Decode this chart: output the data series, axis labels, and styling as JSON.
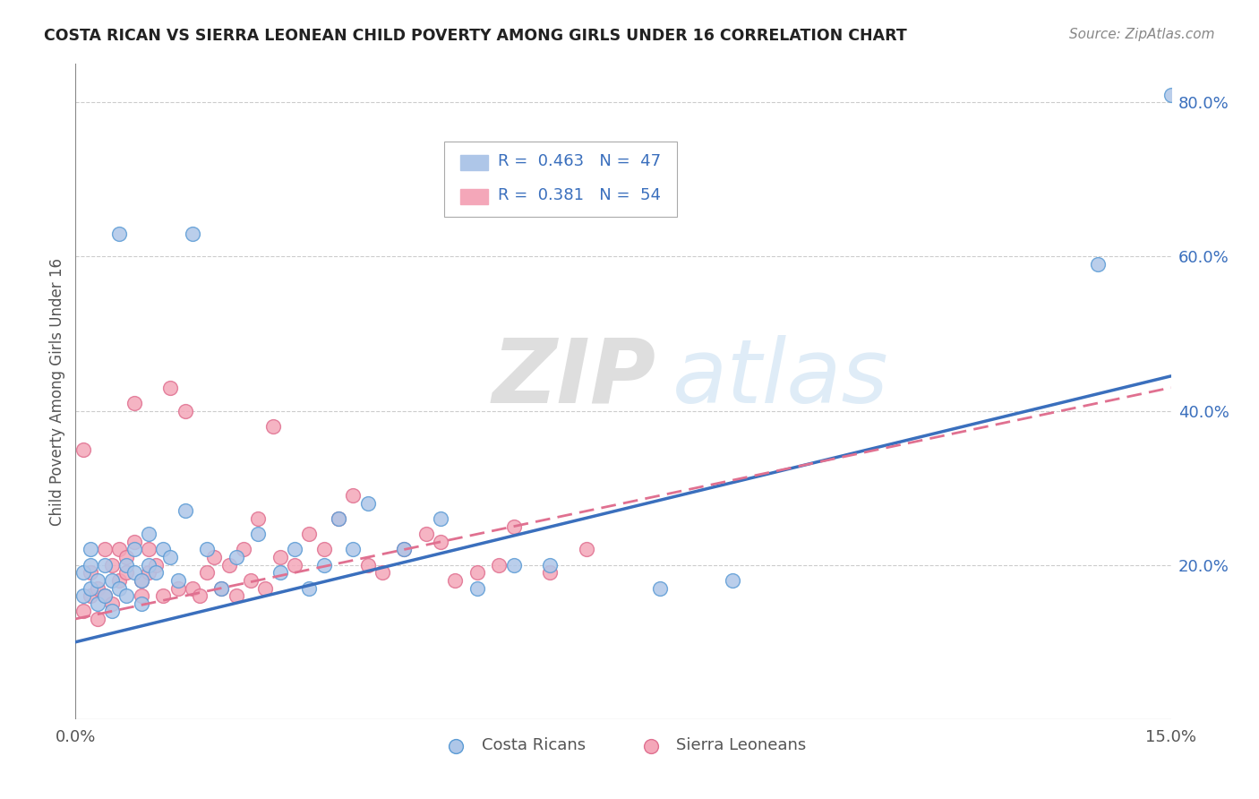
{
  "title": "COSTA RICAN VS SIERRA LEONEAN CHILD POVERTY AMONG GIRLS UNDER 16 CORRELATION CHART",
  "source": "Source: ZipAtlas.com",
  "ylabel": "Child Poverty Among Girls Under 16",
  "xlim": [
    0.0,
    0.15
  ],
  "ylim": [
    0.0,
    0.85
  ],
  "ytick_positions": [
    0.2,
    0.4,
    0.6,
    0.8
  ],
  "ytick_labels": [
    "20.0%",
    "40.0%",
    "60.0%",
    "80.0%"
  ],
  "grid_color": "#cccccc",
  "background_color": "#ffffff",
  "costa_rican_color": "#aec6e8",
  "costa_rican_edge_color": "#5b9bd5",
  "sierra_leonean_color": "#f4a7b9",
  "sierra_leonean_edge_color": "#e07090",
  "cr_line_color": "#3a6fbd",
  "sl_line_color": "#e07090",
  "watermark_color": "#d8e8f5",
  "legend_text_color": "#3a6fbd",
  "cr_line_intercept": 0.1,
  "cr_line_slope": 2.3,
  "sl_line_intercept": 0.13,
  "sl_line_slope": 2.0,
  "costa_ricans_x": [
    0.001,
    0.001,
    0.002,
    0.002,
    0.002,
    0.003,
    0.003,
    0.004,
    0.004,
    0.005,
    0.005,
    0.006,
    0.006,
    0.007,
    0.007,
    0.008,
    0.008,
    0.009,
    0.009,
    0.01,
    0.01,
    0.011,
    0.012,
    0.013,
    0.014,
    0.015,
    0.016,
    0.018,
    0.02,
    0.022,
    0.025,
    0.028,
    0.03,
    0.032,
    0.034,
    0.036,
    0.038,
    0.04,
    0.045,
    0.05,
    0.055,
    0.06,
    0.065,
    0.08,
    0.09,
    0.14,
    0.15
  ],
  "costa_ricans_y": [
    0.16,
    0.19,
    0.17,
    0.2,
    0.22,
    0.15,
    0.18,
    0.16,
    0.2,
    0.14,
    0.18,
    0.17,
    0.63,
    0.2,
    0.16,
    0.19,
    0.22,
    0.15,
    0.18,
    0.2,
    0.24,
    0.19,
    0.22,
    0.21,
    0.18,
    0.27,
    0.63,
    0.22,
    0.17,
    0.21,
    0.24,
    0.19,
    0.22,
    0.17,
    0.2,
    0.26,
    0.22,
    0.28,
    0.22,
    0.26,
    0.17,
    0.2,
    0.2,
    0.17,
    0.18,
    0.59,
    0.81
  ],
  "sierra_leoneans_x": [
    0.001,
    0.001,
    0.002,
    0.002,
    0.003,
    0.003,
    0.004,
    0.004,
    0.005,
    0.005,
    0.006,
    0.006,
    0.007,
    0.007,
    0.008,
    0.008,
    0.009,
    0.009,
    0.01,
    0.01,
    0.011,
    0.012,
    0.013,
    0.014,
    0.015,
    0.016,
    0.017,
    0.018,
    0.019,
    0.02,
    0.021,
    0.022,
    0.023,
    0.024,
    0.025,
    0.026,
    0.027,
    0.028,
    0.03,
    0.032,
    0.034,
    0.036,
    0.038,
    0.04,
    0.042,
    0.045,
    0.048,
    0.05,
    0.052,
    0.055,
    0.058,
    0.06,
    0.065,
    0.07
  ],
  "sierra_leoneans_y": [
    0.35,
    0.14,
    0.16,
    0.19,
    0.13,
    0.17,
    0.22,
    0.16,
    0.2,
    0.15,
    0.22,
    0.18,
    0.21,
    0.19,
    0.23,
    0.41,
    0.18,
    0.16,
    0.19,
    0.22,
    0.2,
    0.16,
    0.43,
    0.17,
    0.4,
    0.17,
    0.16,
    0.19,
    0.21,
    0.17,
    0.2,
    0.16,
    0.22,
    0.18,
    0.26,
    0.17,
    0.38,
    0.21,
    0.2,
    0.24,
    0.22,
    0.26,
    0.29,
    0.2,
    0.19,
    0.22,
    0.24,
    0.23,
    0.18,
    0.19,
    0.2,
    0.25,
    0.19,
    0.22
  ]
}
